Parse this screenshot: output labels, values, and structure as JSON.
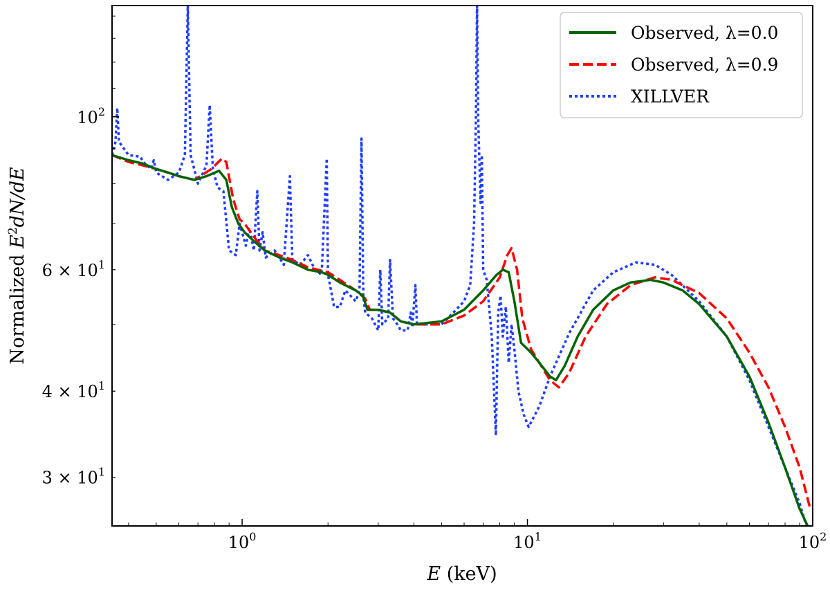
{
  "chart_data": {
    "type": "line",
    "xscale": "log",
    "yscale": "log",
    "xlim": [
      0.35,
      100
    ],
    "ylim": [
      25.5,
      145
    ],
    "xlabel": "E (keV)",
    "ylabel": "Normalized E²dN/dE",
    "x_ticks": [
      {
        "value": 1,
        "base": "10",
        "exp": "0"
      },
      {
        "value": 10,
        "base": "10",
        "exp": "1"
      },
      {
        "value": 100,
        "base": "10",
        "exp": "2"
      }
    ],
    "y_ticks": [
      {
        "value": 100,
        "mant": "",
        "base": "10",
        "exp": "2"
      },
      {
        "value": 60,
        "mant": "6 × ",
        "base": "10",
        "exp": "1"
      },
      {
        "value": 40,
        "mant": "4 × ",
        "base": "10",
        "exp": "1"
      },
      {
        "value": 30,
        "mant": "3 × ",
        "base": "10",
        "exp": "1"
      }
    ],
    "legend_position": "top-right",
    "series": [
      {
        "name": "Observed, λ=0.0",
        "color": "#006400",
        "style": "solid",
        "points": [
          [
            0.35,
            88
          ],
          [
            0.4,
            86.5
          ],
          [
            0.45,
            85.5
          ],
          [
            0.5,
            84
          ],
          [
            0.55,
            83
          ],
          [
            0.6,
            82
          ],
          [
            0.68,
            81
          ],
          [
            0.75,
            82
          ],
          [
            0.83,
            83.5
          ],
          [
            0.88,
            81
          ],
          [
            0.92,
            74
          ],
          [
            0.97,
            70
          ],
          [
            1.02,
            68
          ],
          [
            1.1,
            66
          ],
          [
            1.2,
            64
          ],
          [
            1.35,
            62.5
          ],
          [
            1.5,
            61.5
          ],
          [
            1.7,
            60
          ],
          [
            1.9,
            59.5
          ],
          [
            2.0,
            59
          ],
          [
            2.2,
            57.5
          ],
          [
            2.5,
            56
          ],
          [
            2.65,
            55
          ],
          [
            2.75,
            52.5
          ],
          [
            3.0,
            52.5
          ],
          [
            3.3,
            52
          ],
          [
            3.6,
            50.5
          ],
          [
            4.0,
            50
          ],
          [
            5.0,
            50.5
          ],
          [
            6.0,
            52.5
          ],
          [
            7.0,
            56
          ],
          [
            7.8,
            59
          ],
          [
            8.2,
            60
          ],
          [
            8.6,
            59.5
          ],
          [
            9.0,
            54
          ],
          [
            9.5,
            47
          ],
          [
            10.3,
            45.5
          ],
          [
            11.0,
            44
          ],
          [
            12.0,
            42
          ],
          [
            12.6,
            41.5
          ],
          [
            13.5,
            43.5
          ],
          [
            15.0,
            48
          ],
          [
            17.0,
            52.5
          ],
          [
            20.0,
            56
          ],
          [
            23.0,
            57.5
          ],
          [
            27.0,
            58
          ],
          [
            30.0,
            57.5
          ],
          [
            35.0,
            56
          ],
          [
            40.0,
            53.5
          ],
          [
            50.0,
            48
          ],
          [
            60.0,
            42
          ],
          [
            70.0,
            36
          ],
          [
            80.0,
            31
          ],
          [
            90.0,
            27
          ],
          [
            96.0,
            25.5
          ]
        ]
      },
      {
        "name": "Observed, λ=0.9",
        "color": "#ff0000",
        "style": "dashed",
        "points": [
          [
            0.35,
            88
          ],
          [
            0.4,
            86
          ],
          [
            0.45,
            85
          ],
          [
            0.5,
            84
          ],
          [
            0.55,
            83
          ],
          [
            0.6,
            82
          ],
          [
            0.68,
            81
          ],
          [
            0.78,
            84
          ],
          [
            0.85,
            87
          ],
          [
            0.88,
            86
          ],
          [
            0.93,
            76
          ],
          [
            0.98,
            71
          ],
          [
            1.02,
            70
          ],
          [
            1.1,
            67
          ],
          [
            1.2,
            64
          ],
          [
            1.35,
            63
          ],
          [
            1.5,
            62
          ],
          [
            1.7,
            60.5
          ],
          [
            2.0,
            59.5
          ],
          [
            2.2,
            58
          ],
          [
            2.5,
            56
          ],
          [
            2.7,
            54.5
          ],
          [
            2.8,
            52.5
          ],
          [
            3.0,
            52.5
          ],
          [
            3.3,
            52
          ],
          [
            3.6,
            50.5
          ],
          [
            4.0,
            50
          ],
          [
            5.0,
            50
          ],
          [
            6.0,
            51.5
          ],
          [
            7.0,
            54
          ],
          [
            8.0,
            58.5
          ],
          [
            8.5,
            63
          ],
          [
            8.8,
            64.5
          ],
          [
            9.2,
            60
          ],
          [
            9.6,
            51
          ],
          [
            10.3,
            46
          ],
          [
            11.0,
            44
          ],
          [
            12.0,
            41.5
          ],
          [
            12.9,
            40.5
          ],
          [
            14.0,
            42.5
          ],
          [
            16.0,
            48
          ],
          [
            19.0,
            53.5
          ],
          [
            23.0,
            57
          ],
          [
            28.0,
            58.5
          ],
          [
            32.0,
            58
          ],
          [
            40.0,
            55.5
          ],
          [
            50.0,
            51
          ],
          [
            60.0,
            45.5
          ],
          [
            70.0,
            40.5
          ],
          [
            80.0,
            35.5
          ],
          [
            90.0,
            31
          ],
          [
            98.0,
            27
          ]
        ]
      },
      {
        "name": "XILLVER",
        "color": "#1f3dff",
        "style": "dotted",
        "points": [
          [
            0.35,
            88
          ],
          [
            0.36,
            92
          ],
          [
            0.365,
            103
          ],
          [
            0.37,
            92
          ],
          [
            0.4,
            88
          ],
          [
            0.44,
            87.5
          ],
          [
            0.45,
            86
          ],
          [
            0.48,
            84
          ],
          [
            0.49,
            86.5
          ],
          [
            0.5,
            83
          ],
          [
            0.55,
            81
          ],
          [
            0.6,
            83
          ],
          [
            0.63,
            88
          ],
          [
            0.645,
            145
          ],
          [
            0.66,
            88
          ],
          [
            0.7,
            80
          ],
          [
            0.75,
            85
          ],
          [
            0.77,
            104
          ],
          [
            0.79,
            84
          ],
          [
            0.82,
            79
          ],
          [
            0.86,
            78
          ],
          [
            0.9,
            64
          ],
          [
            0.95,
            63
          ],
          [
            0.98,
            70
          ],
          [
            1.0,
            68
          ],
          [
            1.03,
            65
          ],
          [
            1.06,
            69
          ],
          [
            1.1,
            64
          ],
          [
            1.13,
            78
          ],
          [
            1.15,
            64
          ],
          [
            1.18,
            68
          ],
          [
            1.21,
            62.5
          ],
          [
            1.3,
            64
          ],
          [
            1.4,
            61
          ],
          [
            1.47,
            82
          ],
          [
            1.5,
            62
          ],
          [
            1.6,
            61
          ],
          [
            1.7,
            63
          ],
          [
            1.8,
            60
          ],
          [
            1.9,
            59
          ],
          [
            1.98,
            87
          ],
          [
            2.0,
            59
          ],
          [
            2.05,
            56
          ],
          [
            2.1,
            53
          ],
          [
            2.2,
            53
          ],
          [
            2.3,
            56
          ],
          [
            2.4,
            55
          ],
          [
            2.5,
            54
          ],
          [
            2.58,
            56
          ],
          [
            2.62,
            93
          ],
          [
            2.66,
            55
          ],
          [
            2.7,
            52
          ],
          [
            2.85,
            51
          ],
          [
            3.0,
            49
          ],
          [
            3.05,
            60
          ],
          [
            3.1,
            50
          ],
          [
            3.25,
            51
          ],
          [
            3.3,
            62
          ],
          [
            3.38,
            51
          ],
          [
            3.5,
            50
          ],
          [
            3.6,
            49
          ],
          [
            3.8,
            49
          ],
          [
            3.9,
            52
          ],
          [
            3.95,
            49.5
          ],
          [
            4.05,
            57
          ],
          [
            4.1,
            50
          ],
          [
            4.5,
            50
          ],
          [
            5.0,
            50
          ],
          [
            5.5,
            52
          ],
          [
            6.0,
            54
          ],
          [
            6.3,
            57
          ],
          [
            6.5,
            70
          ],
          [
            6.6,
            100
          ],
          [
            6.66,
            145
          ],
          [
            6.72,
            100
          ],
          [
            6.85,
            75
          ],
          [
            6.92,
            88
          ],
          [
            7.0,
            60
          ],
          [
            7.2,
            58
          ],
          [
            7.5,
            48
          ],
          [
            7.75,
            34.5
          ],
          [
            7.9,
            52
          ],
          [
            8.05,
            55
          ],
          [
            8.2,
            48
          ],
          [
            8.4,
            53
          ],
          [
            8.6,
            44
          ],
          [
            8.8,
            50
          ],
          [
            9.0,
            46
          ],
          [
            9.3,
            40
          ],
          [
            9.7,
            37
          ],
          [
            10.1,
            35.5
          ],
          [
            11.0,
            38
          ],
          [
            12.0,
            42
          ],
          [
            14.0,
            48.5
          ],
          [
            17.0,
            56
          ],
          [
            20.0,
            59.5
          ],
          [
            24.0,
            61.5
          ],
          [
            28.0,
            61
          ],
          [
            32.0,
            59
          ],
          [
            40.0,
            54
          ],
          [
            50.0,
            48
          ],
          [
            60.0,
            41.5
          ],
          [
            70.0,
            35.5
          ],
          [
            80.0,
            31
          ],
          [
            90.0,
            27.5
          ],
          [
            95.0,
            25.5
          ]
        ]
      }
    ]
  }
}
